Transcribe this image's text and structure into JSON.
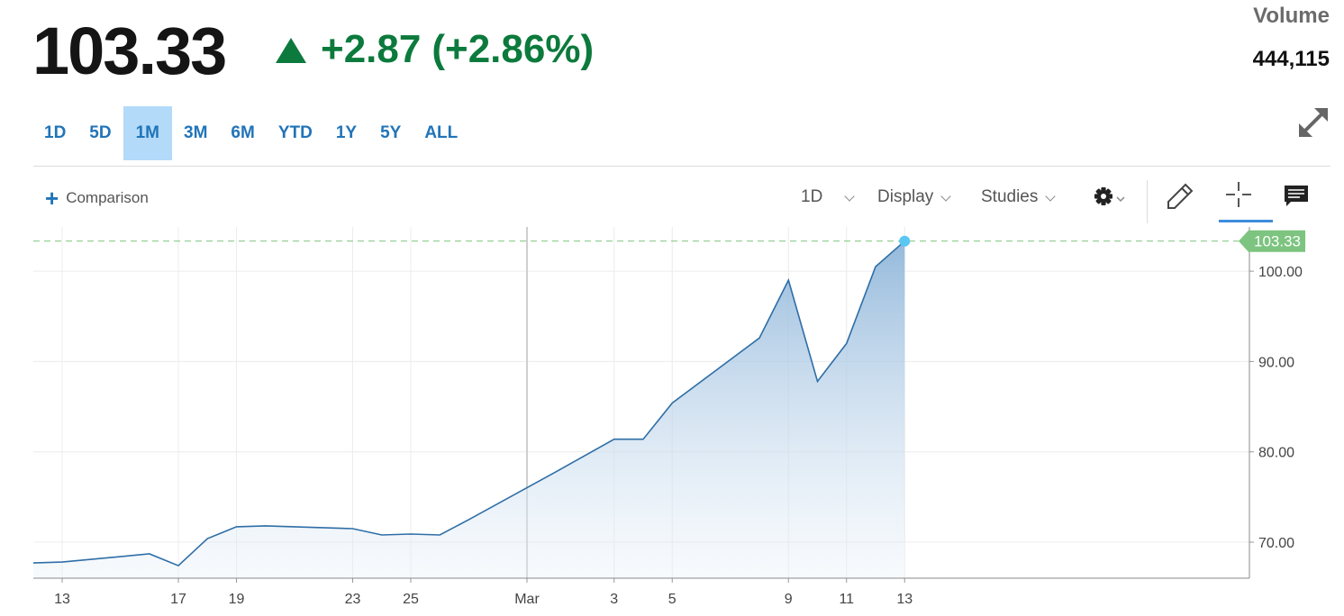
{
  "quote": {
    "price": "103.33",
    "change": "+2.87",
    "change_percent": "(+2.86%)",
    "change_color": "#0c7a3c",
    "direction_icon": "triangle-up-icon",
    "volume_label": "Volume",
    "volume_value": "444,115"
  },
  "range_tabs": [
    {
      "label": "1D",
      "active": false
    },
    {
      "label": "5D",
      "active": false
    },
    {
      "label": "1M",
      "active": true
    },
    {
      "label": "3M",
      "active": false
    },
    {
      "label": "6M",
      "active": false
    },
    {
      "label": "YTD",
      "active": false
    },
    {
      "label": "1Y",
      "active": false
    },
    {
      "label": "5Y",
      "active": false
    },
    {
      "label": "ALL",
      "active": false
    }
  ],
  "toolbar": {
    "comparison_label": "Comparison",
    "interval_label": "1D",
    "display_label": "Display",
    "studies_label": "Studies",
    "icons": [
      "expand-icon",
      "gear-icon",
      "pencil-icon",
      "crosshair-icon",
      "comment-icon"
    ]
  },
  "chart_data": {
    "type": "area",
    "y_axis_position": "right",
    "ylim": [
      66,
      105
    ],
    "grid": true,
    "colors": {
      "line": "#2e6ea6",
      "fill_top": "#8fb6da",
      "last_price": "#5cb85c",
      "last_dot": "#5bc6f2"
    },
    "last_price_label": "103.33",
    "last_price": 103.33,
    "y_ticks": [
      {
        "value": 70,
        "label": "70.00"
      },
      {
        "value": 80,
        "label": "80.00"
      },
      {
        "value": 90,
        "label": "90.00"
      },
      {
        "value": 100,
        "label": "100.00"
      }
    ],
    "x_ticks": [
      {
        "day": 13,
        "label": "13"
      },
      {
        "day": 17,
        "label": "17"
      },
      {
        "day": 19,
        "label": "19"
      },
      {
        "day": 23,
        "label": "23"
      },
      {
        "day": 25,
        "label": "25"
      },
      {
        "day": 29,
        "label": "Mar"
      },
      {
        "day": 32,
        "label": "3"
      },
      {
        "day": 34,
        "label": "5"
      },
      {
        "day": 38,
        "label": "9"
      },
      {
        "day": 40,
        "label": "11"
      },
      {
        "day": 42,
        "label": "13"
      }
    ],
    "series": [
      {
        "points": [
          {
            "day": 12,
            "close": 67.7
          },
          {
            "day": 13,
            "close": 67.8
          },
          {
            "day": 16,
            "close": 68.7
          },
          {
            "day": 17,
            "close": 67.4
          },
          {
            "day": 18,
            "close": 70.4
          },
          {
            "day": 19,
            "close": 71.7
          },
          {
            "day": 20,
            "close": 71.8
          },
          {
            "day": 23,
            "close": 71.5
          },
          {
            "day": 24,
            "close": 70.8
          },
          {
            "day": 25,
            "close": 70.9
          },
          {
            "day": 26,
            "close": 70.8
          },
          {
            "day": 27,
            "close": 72.5
          },
          {
            "day": 30,
            "close": 77.8
          },
          {
            "day": 32,
            "close": 81.4
          },
          {
            "day": 33,
            "close": 81.4
          },
          {
            "day": 34,
            "close": 85.4
          },
          {
            "day": 37,
            "close": 92.6
          },
          {
            "day": 38,
            "close": 99.0
          },
          {
            "day": 39,
            "close": 87.8
          },
          {
            "day": 40,
            "close": 92.0
          },
          {
            "day": 41,
            "close": 100.5
          },
          {
            "day": 42,
            "close": 103.33
          }
        ]
      }
    ]
  }
}
